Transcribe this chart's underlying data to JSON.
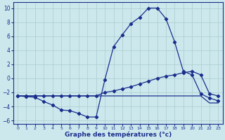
{
  "xlabel": "Graphe des températures (°c)",
  "bg_color": "#cce8ed",
  "grid_color": "#aacccc",
  "line_color": "#1a2e8c",
  "xlim": [
    -0.5,
    23.5
  ],
  "ylim": [
    -6.5,
    10.8
  ],
  "yticks": [
    -6,
    -4,
    -2,
    0,
    2,
    4,
    6,
    8,
    10
  ],
  "xticks": [
    0,
    1,
    2,
    3,
    4,
    5,
    6,
    7,
    8,
    9,
    10,
    11,
    12,
    13,
    14,
    15,
    16,
    17,
    18,
    19,
    20,
    21,
    22,
    23
  ],
  "line1_x": [
    0,
    1,
    2,
    3,
    4,
    5,
    6,
    7,
    8,
    9,
    10,
    11,
    12,
    13,
    14,
    15,
    16,
    17,
    18,
    19,
    20,
    21,
    22,
    23
  ],
  "line1_y": [
    -2.5,
    -2.6,
    -2.7,
    -3.3,
    -3.8,
    -4.5,
    -4.6,
    -5.0,
    -5.5,
    -5.5,
    -0.2,
    4.5,
    6.2,
    7.8,
    8.7,
    10.0,
    10.0,
    8.5,
    5.2,
    1.0,
    0.5,
    -2.2,
    -2.8,
    -3.2
  ],
  "line2_x": [
    0,
    1,
    2,
    3,
    4,
    5,
    6,
    7,
    8,
    9,
    10,
    11,
    12,
    13,
    14,
    15,
    16,
    17,
    18,
    19,
    20,
    21,
    22,
    23
  ],
  "line2_y": [
    -2.5,
    -2.5,
    -2.5,
    -2.5,
    -2.5,
    -2.5,
    -2.5,
    -2.5,
    -2.5,
    -2.5,
    -2.0,
    -1.8,
    -1.5,
    -1.2,
    -0.8,
    -0.4,
    0.0,
    0.3,
    0.5,
    0.8,
    1.0,
    0.5,
    -2.2,
    -2.5
  ],
  "line3_x": [
    0,
    1,
    2,
    3,
    4,
    5,
    6,
    7,
    8,
    9,
    10,
    11,
    12,
    13,
    14,
    15,
    16,
    17,
    18,
    19,
    20,
    21,
    22,
    23
  ],
  "line3_y": [
    -2.5,
    -2.5,
    -2.5,
    -2.5,
    -2.5,
    -2.5,
    -2.5,
    -2.5,
    -2.5,
    -2.5,
    -2.5,
    -2.5,
    -2.5,
    -2.5,
    -2.5,
    -2.5,
    -2.5,
    -2.5,
    -2.5,
    -2.5,
    -2.5,
    -2.5,
    -3.5,
    -3.5
  ]
}
